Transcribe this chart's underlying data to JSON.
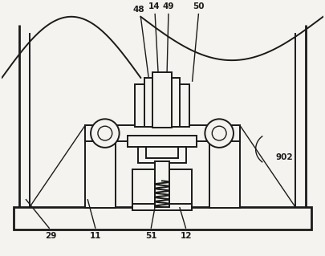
{
  "bg_color": "#f5f3ef",
  "line_color": "#1a1a1a",
  "fig_width": 4.05,
  "fig_height": 3.19,
  "lw_thick": 2.0,
  "lw_med": 1.4,
  "lw_thin": 1.0
}
